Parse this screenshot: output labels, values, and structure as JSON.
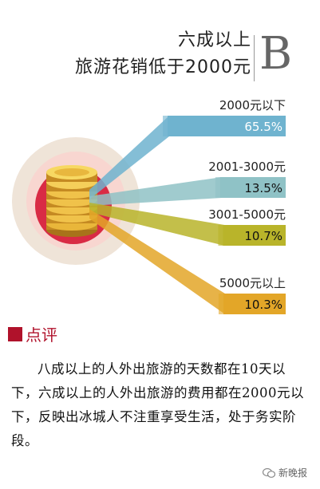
{
  "title": {
    "line1": "六成以上",
    "line2": "旅游花销低于2000元",
    "badge": "B"
  },
  "chart_data": {
    "type": "bar",
    "categories": [
      "2000元以下",
      "2001-3000元",
      "3001-5000元",
      "5000元以上"
    ],
    "values": [
      65.5,
      13.5,
      10.7,
      10.3
    ],
    "value_labels": [
      "65.5%",
      "13.5%",
      "10.7%",
      "10.3%"
    ],
    "colors": [
      "#6fb3cf",
      "#8fc2c6",
      "#b9b42a",
      "#e3a628"
    ],
    "title": "",
    "xlabel": "",
    "ylabel": ""
  },
  "section": {
    "heading": "点评",
    "text": "八成以上的人外出旅游的天数都在10天以下，六成以上的人外出旅游的费用都在2000元以下，反映出冰城人不注重享受生活，处于务实阶段。"
  },
  "credit": {
    "text": "新晚报"
  }
}
